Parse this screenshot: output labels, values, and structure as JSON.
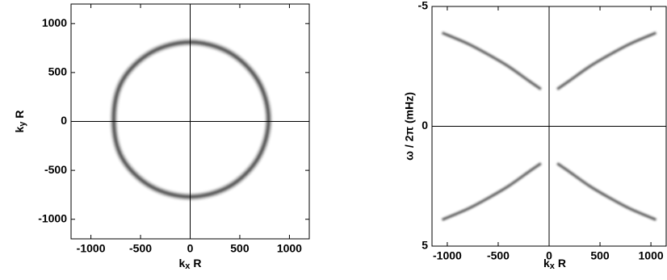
{
  "chart_data": [
    {
      "type": "ring",
      "x_label": {
        "main": "k",
        "sub": "x",
        "rest": "R"
      },
      "y_label": {
        "main": "k",
        "sub": "y",
        "rest": "R"
      },
      "xlim": [
        -1200,
        1200
      ],
      "ylim": [
        -1200,
        1200
      ],
      "xticks": [
        -1000,
        -500,
        0,
        500,
        1000
      ],
      "yticks": [
        -1000,
        -500,
        0,
        500,
        1000
      ],
      "zero_lines": true,
      "x": [
        790,
        684,
        395,
        0,
        -395,
        -684,
        -770,
        -684,
        -395,
        0,
        395,
        684
      ],
      "series": [
        {
          "color": "#333333",
          "values": [
            20,
            415,
            704,
            810,
            704,
            415,
            20,
            -375,
            -664,
            -770,
            -664,
            -375
          ]
        }
      ]
    },
    {
      "type": "line",
      "x_label": {
        "main": "k",
        "sub": "x",
        "rest": "R"
      },
      "y_label": "ω / 2π (mHz)",
      "xlim": [
        -1150,
        1150
      ],
      "ylim": [
        5,
        -5
      ],
      "xticks": [
        -1000,
        -500,
        0,
        500,
        1000
      ],
      "yticks": [
        -5,
        0,
        5
      ],
      "zero_lines": true,
      "series": [
        {
          "color": "#333333",
          "x": [
            80,
            200,
            400,
            600,
            800,
            1050
          ],
          "values": [
            -1.55,
            -1.9,
            -2.5,
            -3.0,
            -3.45,
            -3.9
          ]
        },
        {
          "color": "#333333",
          "x": [
            -80,
            -200,
            -400,
            -600,
            -800,
            -1050
          ],
          "values": [
            -1.55,
            -1.9,
            -2.5,
            -3.0,
            -3.45,
            -3.9
          ]
        },
        {
          "color": "#333333",
          "x": [
            80,
            200,
            400,
            600,
            800,
            1050
          ],
          "values": [
            1.55,
            1.9,
            2.5,
            3.0,
            3.45,
            3.9
          ]
        },
        {
          "color": "#333333",
          "x": [
            -80,
            -200,
            -400,
            -600,
            -800,
            -1050
          ],
          "values": [
            1.55,
            1.9,
            2.5,
            3.0,
            3.45,
            3.9
          ]
        }
      ]
    }
  ]
}
